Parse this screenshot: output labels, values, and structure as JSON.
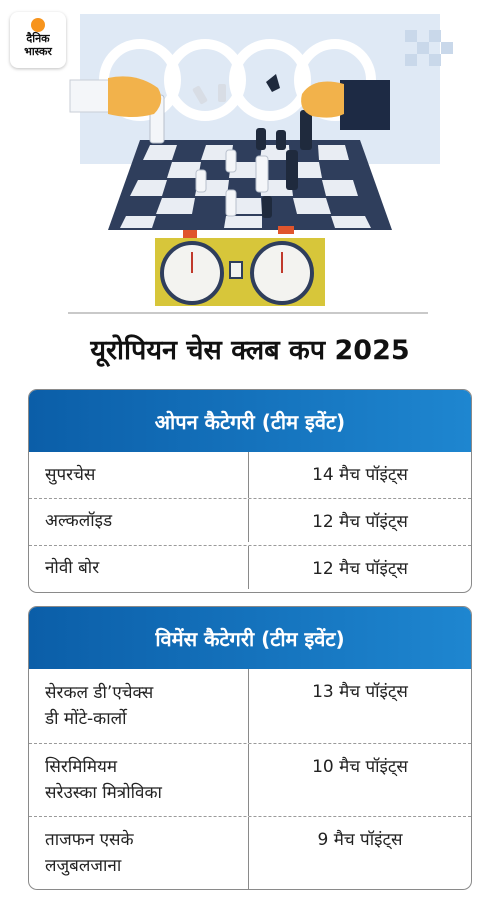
{
  "logo": {
    "line1": "दैनिक",
    "line2": "भास्कर"
  },
  "title": "यूरोपियन चेस क्लब कप 2025",
  "open": {
    "heading": "ओपन कैटेगरी (टीम इवेंट)",
    "rows": [
      {
        "team": "सुपरचेस",
        "points": "14 मैच पॉइंट्स"
      },
      {
        "team": "अल्कलॉइड",
        "points": "12 मैच पॉइंट्स"
      },
      {
        "team": "नोवी बोर",
        "points": "12 मैच पॉइंट्स"
      }
    ]
  },
  "women": {
    "heading": "विमेंस कैटेगरी (टीम इवेंट)",
    "rows": [
      {
        "team_l1": "सेरकल डी’एचेक्स",
        "team_l2": "डी मोंटे-कार्लो",
        "points": "13 मैच पॉइंट्स"
      },
      {
        "team_l1": "सिरमिमियम",
        "team_l2": "सरेउस्का मित्रोविका",
        "points": "10 मैच पॉइंट्स"
      },
      {
        "team_l1": "ताजफन एसके",
        "team_l2": "लजुबलजाना",
        "points": "9 मैच पॉइंट्स"
      }
    ]
  },
  "colors": {
    "header_blue": "#0b5ea8",
    "board_dark": "#2f3e5c",
    "board_light": "#e9edf3",
    "clock_yellow": "#d7c63a"
  }
}
